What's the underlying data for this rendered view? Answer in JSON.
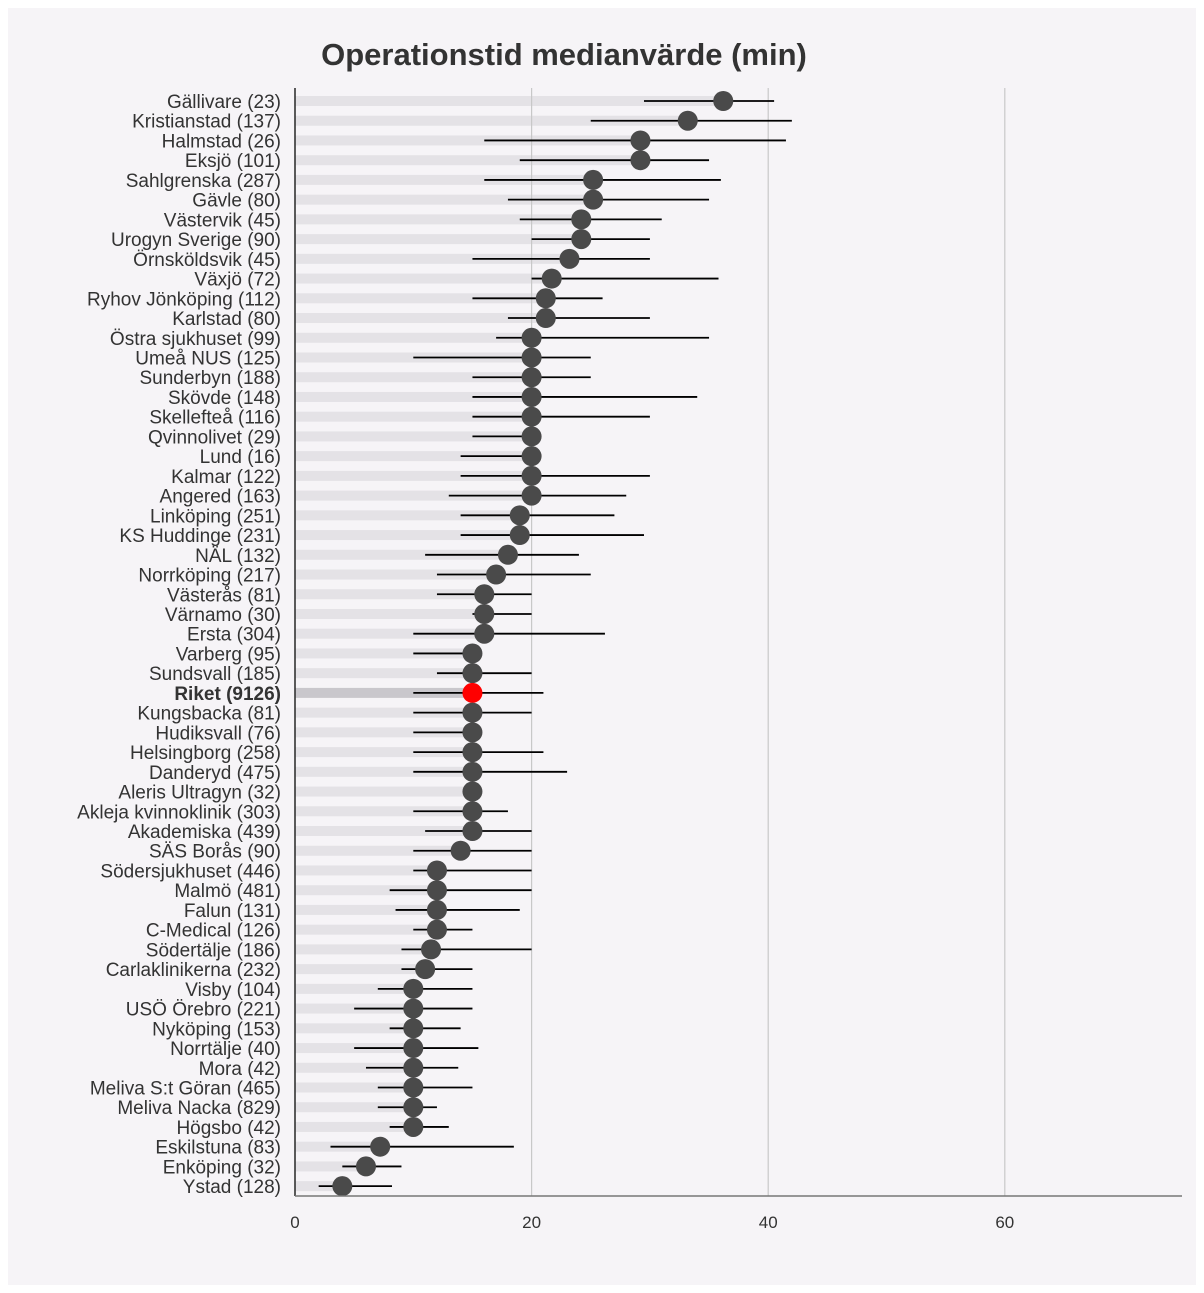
{
  "chart_data": {
    "type": "dot",
    "title": "Operationstid medianvärde (min)",
    "xlabel": "",
    "ylabel": "",
    "xlim": [
      0,
      75
    ],
    "x_ticks": [
      0,
      20,
      40,
      60
    ],
    "grid": "vertical",
    "colors": {
      "point": "#4a4a4a",
      "highlight": "#ff0000",
      "interval": "#000000",
      "band": "#e4e2e6",
      "band_highlight": "#c9c7cc",
      "grid": "#c8c8c8"
    },
    "highlight_index": 30,
    "categories": [
      "Gällivare (23)",
      "Kristianstad (137)",
      "Halmstad (26)",
      "Eksjö (101)",
      "Sahlgrenska (287)",
      "Gävle (80)",
      "Västervik (45)",
      "Urogyn Sverige (90)",
      "Örnsköldsvik (45)",
      "Växjö (72)",
      "Ryhov Jönköping (112)",
      "Karlstad (80)",
      "Östra sjukhuset (99)",
      "Umeå NUS (125)",
      "Sunderbyn (188)",
      "Skövde (148)",
      "Skellefteå (116)",
      "Qvinnolivet (29)",
      "Lund (16)",
      "Kalmar (122)",
      "Angered (163)",
      "Linköping (251)",
      "KS Huddinge (231)",
      "NÄL (132)",
      "Norrköping (217)",
      "Västerås (81)",
      "Värnamo (30)",
      "Ersta (304)",
      "Varberg (95)",
      "Sundsvall (185)",
      "Riket (9126)",
      "Kungsbacka (81)",
      "Hudiksvall (76)",
      "Helsingborg (258)",
      "Danderyd (475)",
      "Aleris Ultragyn (32)",
      "Akleja kvinnoklinik (303)",
      "Akademiska (439)",
      "SÄS Borås (90)",
      "Södersjukhuset (446)",
      "Malmö (481)",
      "Falun (131)",
      "C-Medical (126)",
      "Södertälje (186)",
      "Carlaklinikerna (232)",
      "Visby (104)",
      "USÖ Örebro (221)",
      "Nyköping (153)",
      "Norrtälje (40)",
      "Mora (42)",
      "Meliva S:t Göran (465)",
      "Meliva Nacka (829)",
      "Högsbo (42)",
      "Eskilstuna (83)",
      "Enköping (32)",
      "Ystad (128)"
    ],
    "values": [
      36.2,
      33.2,
      29.2,
      29.2,
      25.2,
      25.2,
      24.2,
      24.2,
      23.2,
      21.7,
      21.2,
      21.2,
      20.0,
      20.0,
      20.0,
      20.0,
      20.0,
      20.0,
      20.0,
      20.0,
      20.0,
      19.0,
      19.0,
      18.0,
      17.0,
      16.0,
      16.0,
      16.0,
      15.0,
      15.0,
      15.0,
      15.0,
      15.0,
      15.0,
      15.0,
      15.0,
      15.0,
      15.0,
      14.0,
      12.0,
      12.0,
      12.0,
      12.0,
      11.5,
      11.0,
      10.0,
      10.0,
      10.0,
      10.0,
      10.0,
      10.0,
      10.0,
      10.0,
      7.2,
      6.0,
      4.0
    ],
    "lower": [
      29.5,
      25.0,
      16.0,
      19.0,
      16.0,
      18.0,
      19.0,
      20.0,
      15.0,
      20.0,
      15.0,
      18.0,
      17.0,
      10.0,
      15.0,
      15.0,
      15.0,
      15.0,
      14.0,
      14.0,
      13.0,
      14.0,
      14.0,
      11.0,
      12.0,
      12.0,
      15.0,
      10.0,
      10.0,
      12.0,
      10.0,
      10.0,
      10.0,
      10.0,
      10.0,
      15.0,
      10.0,
      11.0,
      10.0,
      10.0,
      8.0,
      8.5,
      10.0,
      9.0,
      9.0,
      7.0,
      5.0,
      8.0,
      5.0,
      6.0,
      7.0,
      7.0,
      8.0,
      3.0,
      4.0,
      2.0
    ],
    "upper": [
      40.5,
      42.0,
      41.5,
      35.0,
      36.0,
      35.0,
      31.0,
      30.0,
      30.0,
      35.8,
      26.0,
      30.0,
      35.0,
      25.0,
      25.0,
      34.0,
      30.0,
      20.0,
      20.0,
      30.0,
      28.0,
      27.0,
      29.5,
      24.0,
      25.0,
      20.0,
      20.0,
      26.2,
      15.0,
      20.0,
      21.0,
      20.0,
      15.0,
      21.0,
      23.0,
      15.0,
      18.0,
      20.0,
      20.0,
      20.0,
      20.0,
      19.0,
      15.0,
      20.0,
      15.0,
      15.0,
      15.0,
      14.0,
      15.5,
      13.8,
      15.0,
      12.0,
      13.0,
      18.5,
      9.0,
      8.2
    ]
  }
}
